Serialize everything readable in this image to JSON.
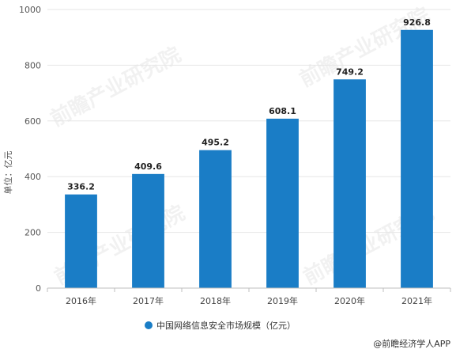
{
  "chart_data": {
    "type": "bar",
    "categories": [
      "2016年",
      "2017年",
      "2018年",
      "2019年",
      "2020年",
      "2021年"
    ],
    "series": [
      {
        "name": "中国网络信息安全市场规模（亿元）",
        "values": [
          336.2,
          409.6,
          495.2,
          608.1,
          749.2,
          926.8
        ]
      }
    ],
    "data_labels": [
      "336.2",
      "409.6",
      "495.2",
      "608.1",
      "749.2",
      "926.8"
    ],
    "ylabel": "单位：亿元",
    "ylim": [
      0,
      1000
    ],
    "yticks": [
      0,
      200,
      400,
      600,
      800,
      1000
    ],
    "grid": true,
    "legend": "bottom-center",
    "bar_color": "#1a7dc6"
  },
  "watermark": "前瞻产业研究院",
  "credit": "@前瞻经济学人APP"
}
